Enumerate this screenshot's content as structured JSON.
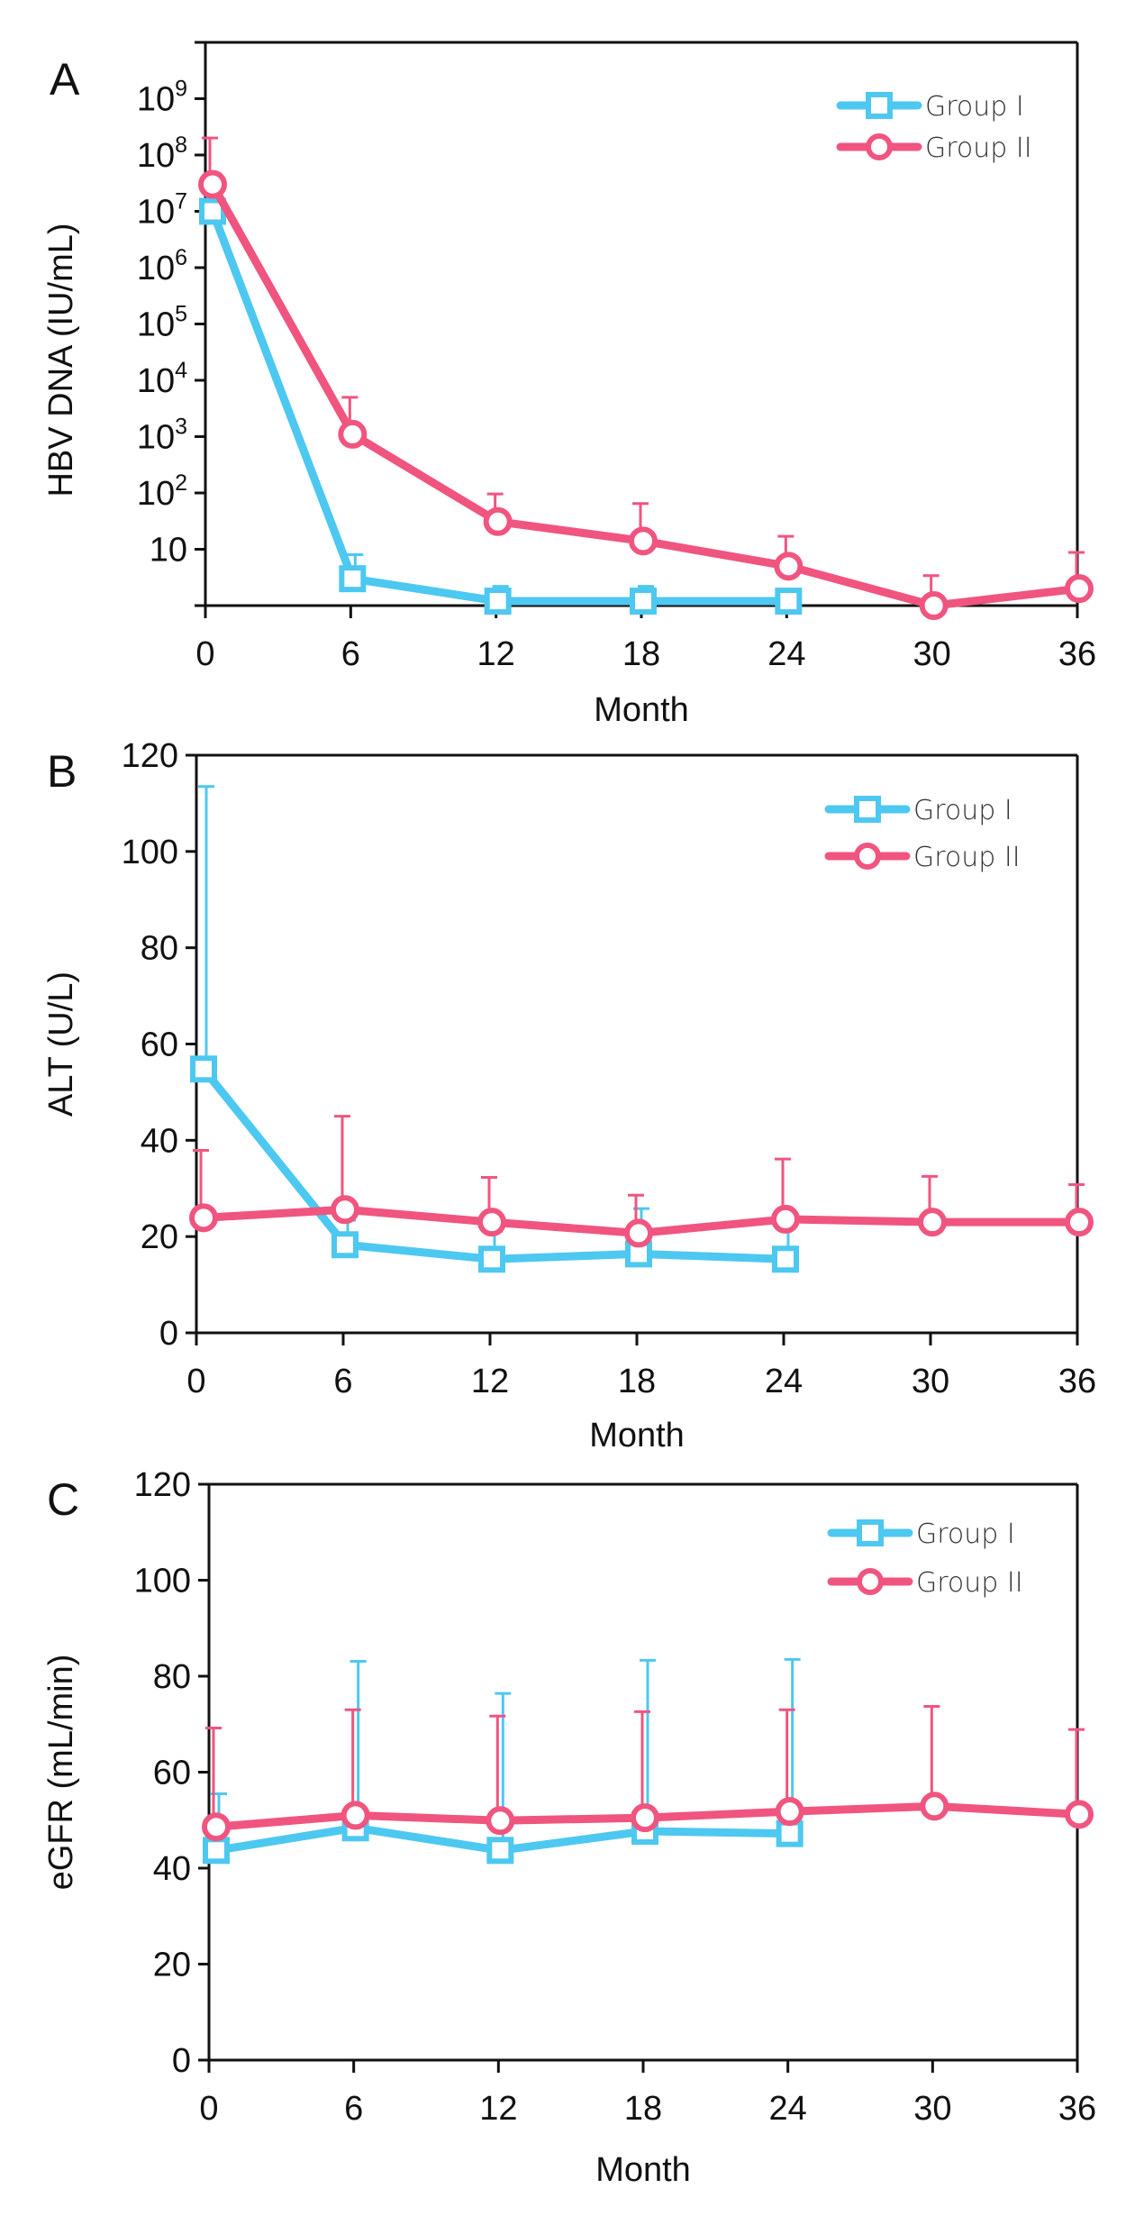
{
  "colors": {
    "group1": "#4dc8f0",
    "group2": "#f0557f",
    "axis": "#111111"
  },
  "chart_data": [
    {
      "panel": "A",
      "type": "line",
      "title": "",
      "xlabel": "Month",
      "ylabel": "HBV DNA (IU/mL)",
      "yscale": "log",
      "xlim": [
        0,
        36
      ],
      "ylim": [
        1,
        10000000000
      ],
      "xticks": [
        0,
        6,
        12,
        18,
        24,
        30,
        36
      ],
      "xtick_labels": [
        "0",
        "6",
        "12",
        "18",
        "24",
        "30",
        "36"
      ],
      "yticks": [
        10,
        100,
        1000,
        10000,
        100000,
        1000000,
        10000000,
        100000000,
        1000000000
      ],
      "ytick_labels": [
        {
          "base": "10",
          "exp": ""
        },
        {
          "base": "10",
          "exp": "2"
        },
        {
          "base": "10",
          "exp": "3"
        },
        {
          "base": "10",
          "exp": "4"
        },
        {
          "base": "10",
          "exp": "5"
        },
        {
          "base": "10",
          "exp": "6"
        },
        {
          "base": "10",
          "exp": "7"
        },
        {
          "base": "10",
          "exp": "8"
        },
        {
          "base": "10",
          "exp": "9"
        }
      ],
      "legend": "top-right",
      "series": [
        {
          "name": "Group I",
          "marker": "square",
          "x": [
            0,
            6,
            12,
            18,
            24
          ],
          "y": [
            10000000,
            3,
            1.2,
            1.2,
            1.2
          ],
          "err_upper": [
            10000000,
            8,
            2.2,
            2.2,
            1.2
          ]
        },
        {
          "name": "Group II",
          "marker": "circle",
          "x": [
            0,
            6,
            12,
            18,
            24,
            30,
            36
          ],
          "y": [
            30000000,
            1100,
            31,
            14,
            5,
            1,
            2
          ],
          "err_upper": [
            200000000,
            5000,
            96,
            65,
            17,
            3.4,
            8.8
          ]
        }
      ]
    },
    {
      "panel": "B",
      "type": "line",
      "title": "",
      "xlabel": "Month",
      "ylabel": "ALT (U/L)",
      "yscale": "linear",
      "xlim": [
        0,
        36
      ],
      "ylim": [
        0,
        120
      ],
      "xticks": [
        0,
        6,
        12,
        18,
        24,
        30,
        36
      ],
      "xtick_labels": [
        "0",
        "6",
        "12",
        "18",
        "24",
        "30",
        "36"
      ],
      "yticks": [
        0,
        20,
        40,
        60,
        80,
        100,
        120
      ],
      "ytick_labels": [
        "0",
        "20",
        "40",
        "60",
        "80",
        "100",
        "120"
      ],
      "legend": "top-right",
      "series": [
        {
          "name": "Group I",
          "marker": "square",
          "x": [
            0,
            6,
            12,
            18,
            24
          ],
          "y": [
            54.8,
            18.3,
            15.3,
            16.4,
            15.3
          ],
          "err_upper": [
            113.5,
            23.4,
            21.1,
            25.8,
            23.6
          ]
        },
        {
          "name": "Group II",
          "marker": "circle",
          "x": [
            0,
            6,
            12,
            18,
            24,
            30,
            36
          ],
          "y": [
            23.9,
            25.6,
            23.0,
            20.7,
            23.6,
            23.0,
            23.0
          ],
          "err_upper": [
            37.9,
            45.0,
            32.3,
            28.6,
            36.1,
            32.5,
            30.8
          ]
        }
      ]
    },
    {
      "panel": "C",
      "type": "line",
      "title": "",
      "xlabel": "Month",
      "ylabel": "eGFR (mL/min)",
      "yscale": "linear",
      "xlim": [
        0,
        36
      ],
      "ylim": [
        0,
        120
      ],
      "xticks": [
        0,
        6,
        12,
        18,
        24,
        30,
        36
      ],
      "xtick_labels": [
        "0",
        "6",
        "12",
        "18",
        "24",
        "30",
        "36"
      ],
      "yticks": [
        0,
        20,
        40,
        60,
        80,
        100,
        120
      ],
      "ytick_labels": [
        "0",
        "20",
        "40",
        "60",
        "80",
        "100",
        "120"
      ],
      "legend": "top-right",
      "series": [
        {
          "name": "Group I",
          "marker": "square",
          "x": [
            0,
            6,
            12,
            18,
            24
          ],
          "y": [
            43.7,
            48.4,
            43.7,
            47.7,
            47.2
          ],
          "err_upper": [
            55.5,
            83.1,
            76.4,
            83.3,
            83.5
          ]
        },
        {
          "name": "Group II",
          "marker": "circle",
          "x": [
            0,
            6,
            12,
            18,
            24,
            30,
            36
          ],
          "y": [
            48.6,
            51.0,
            49.9,
            50.5,
            51.8,
            52.9,
            51.2
          ],
          "err_upper": [
            69.2,
            73.0,
            71.7,
            72.6,
            73.0,
            73.7,
            68.9
          ]
        }
      ]
    }
  ]
}
